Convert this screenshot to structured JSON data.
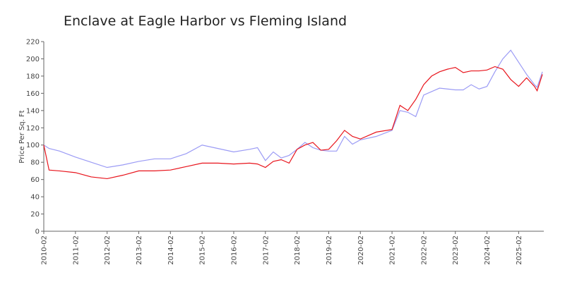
{
  "chart_data": {
    "type": "line",
    "title": "Enclave at Eagle Harbor vs Fleming Island",
    "y_label": "Price Per Sq. Ft",
    "x": [
      "2010-02",
      "2010-04",
      "2010-08",
      "2011-02",
      "2011-08",
      "2012-02",
      "2012-08",
      "2013-02",
      "2013-08",
      "2014-02",
      "2014-08",
      "2015-02",
      "2015-08",
      "2016-02",
      "2016-08",
      "2016-11",
      "2017-02",
      "2017-05",
      "2017-08",
      "2017-11",
      "2018-02",
      "2018-05",
      "2018-08",
      "2018-11",
      "2019-02",
      "2019-05",
      "2019-08",
      "2019-11",
      "2020-02",
      "2020-08",
      "2021-02",
      "2021-05",
      "2021-08",
      "2021-11",
      "2022-02",
      "2022-05",
      "2022-08",
      "2022-11",
      "2023-02",
      "2023-05",
      "2023-08",
      "2023-11",
      "2024-02",
      "2024-05",
      "2024-08",
      "2024-11",
      "2025-02",
      "2025-05",
      "2025-08",
      "2025-09",
      "2025-11"
    ],
    "series": [
      {
        "color": "#9b9bf5",
        "values": [
          100,
          96,
          93,
          86,
          80,
          74,
          77,
          81,
          84,
          84,
          90,
          100,
          96,
          92,
          95,
          97,
          82,
          92,
          85,
          88,
          95,
          103,
          97,
          94,
          93,
          93,
          110,
          101,
          106,
          110,
          117,
          140,
          138,
          133,
          158,
          162,
          166,
          165,
          164,
          164,
          170,
          165,
          168,
          185,
          200,
          210,
          196,
          182,
          170,
          167,
          185
        ]
      },
      {
        "color": "#e8141c",
        "values": [
          100,
          71,
          70,
          68,
          63,
          61,
          65,
          70,
          70,
          71,
          75,
          79,
          79,
          78,
          79,
          78,
          74,
          81,
          83,
          79,
          95,
          100,
          103,
          94,
          95,
          105,
          117,
          110,
          107,
          115,
          118,
          146,
          140,
          153,
          170,
          180,
          185,
          188,
          190,
          184,
          186,
          186,
          187,
          191,
          188,
          176,
          168,
          178,
          168,
          163,
          182
        ]
      }
    ],
    "xlim": [
      "2010-02",
      "2025-11"
    ],
    "xticks": [
      "2010-02",
      "2011-02",
      "2012-02",
      "2013-02",
      "2014-02",
      "2015-02",
      "2016-02",
      "2017-02",
      "2018-02",
      "2019-02",
      "2020-02",
      "2021-02",
      "2022-02",
      "2023-02",
      "2024-02",
      "2025-02"
    ],
    "ylim": [
      0,
      220
    ],
    "yticks": [
      0,
      20,
      40,
      60,
      80,
      100,
      120,
      140,
      160,
      180,
      200,
      220
    ],
    "grid": false
  }
}
